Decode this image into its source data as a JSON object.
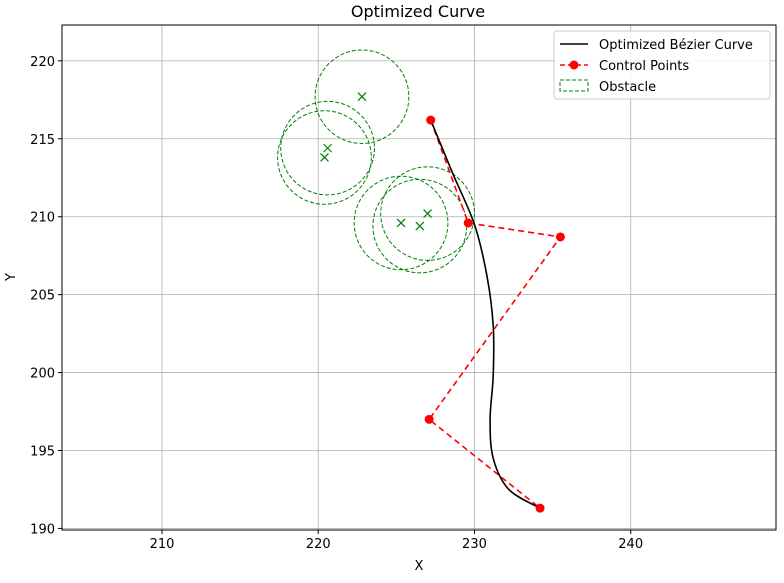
{
  "chart_data": {
    "type": "line",
    "title": "Optimized Curve",
    "xlabel": "X",
    "ylabel": "Y",
    "xlim": [
      203.6,
      249.3
    ],
    "ylim": [
      189.9,
      222.3
    ],
    "xticks": [
      210,
      220,
      230,
      240
    ],
    "yticks": [
      190,
      195,
      200,
      205,
      210,
      215,
      220
    ],
    "grid": true,
    "legend_position": "top-right",
    "series": [
      {
        "name": "Optimized Bézier Curve",
        "kind": "line",
        "color": "#000000",
        "x": [
          227.2,
          228.6,
          230.0,
          230.8,
          231.2,
          231.2,
          231.0,
          231.2,
          232.2,
          234.2
        ],
        "y": [
          216.2,
          212.8,
          209.5,
          206.2,
          203.0,
          199.8,
          197.0,
          194.5,
          192.5,
          191.3
        ]
      },
      {
        "name": "Control Points",
        "kind": "line-markers",
        "color": "#ff0000",
        "x": [
          227.2,
          229.6,
          235.5,
          227.1,
          234.2
        ],
        "y": [
          216.2,
          209.6,
          208.7,
          197.0,
          191.3
        ]
      },
      {
        "name": "Obstacle",
        "kind": "circles",
        "color": "#008000",
        "centers_x": [
          220.4,
          220.6,
          222.8,
          225.3,
          227.0,
          226.5
        ],
        "centers_y": [
          213.8,
          214.4,
          217.7,
          209.6,
          210.2,
          209.4
        ],
        "radius": [
          3.0,
          3.0,
          3.0,
          3.0,
          3.0,
          3.0
        ]
      }
    ]
  }
}
